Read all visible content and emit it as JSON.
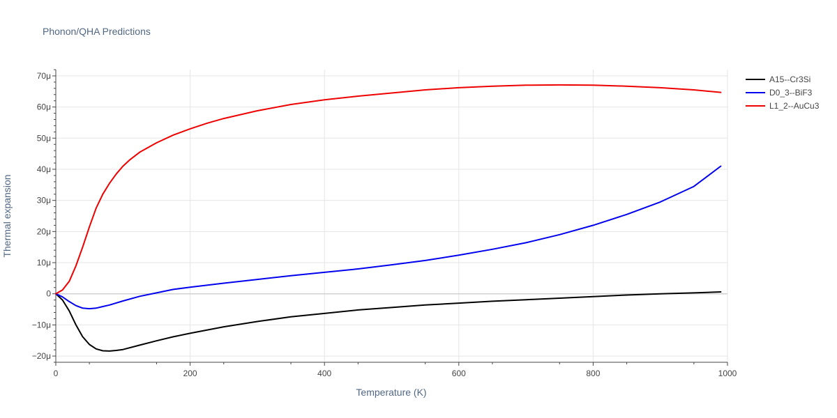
{
  "chart_data": {
    "type": "line",
    "title": "Phonon/QHA Predictions",
    "xlabel": "Temperature (K)",
    "ylabel": "Thermal expansion",
    "xlim": [
      0,
      1000
    ],
    "ylim": [
      -22,
      72
    ],
    "x_ticks": [
      0,
      200,
      400,
      600,
      800,
      1000
    ],
    "x_tick_labels": [
      "0",
      "200",
      "400",
      "600",
      "800",
      "1000"
    ],
    "y_ticks": [
      -20,
      -10,
      0,
      10,
      20,
      30,
      40,
      50,
      60,
      70
    ],
    "y_tick_labels": [
      "−20μ",
      "−10μ",
      "0",
      "10μ",
      "20μ",
      "30μ",
      "40μ",
      "50μ",
      "60μ",
      "70μ"
    ],
    "grid": true,
    "legend_position": "top-right",
    "series": [
      {
        "name": "A15--Cr3Si",
        "color": "#000000",
        "x": [
          0,
          10,
          20,
          30,
          40,
          50,
          60,
          70,
          80,
          90,
          100,
          125,
          150,
          175,
          200,
          250,
          300,
          350,
          400,
          450,
          500,
          550,
          600,
          650,
          700,
          750,
          800,
          850,
          900,
          950,
          990
        ],
        "y": [
          0,
          -2,
          -5.5,
          -10,
          -13.8,
          -16.3,
          -17.7,
          -18.3,
          -18.4,
          -18.2,
          -17.9,
          -16.5,
          -15.1,
          -13.8,
          -12.7,
          -10.6,
          -8.9,
          -7.4,
          -6.3,
          -5.2,
          -4.4,
          -3.6,
          -3.0,
          -2.4,
          -1.9,
          -1.4,
          -0.9,
          -0.4,
          0,
          0.3,
          0.6
        ]
      },
      {
        "name": "D0_3--BiF3",
        "color": "#0000ee",
        "x": [
          0,
          10,
          20,
          30,
          40,
          50,
          60,
          70,
          80,
          100,
          125,
          150,
          175,
          200,
          250,
          300,
          350,
          400,
          450,
          500,
          550,
          600,
          650,
          700,
          750,
          800,
          850,
          900,
          950,
          990
        ],
        "y": [
          0,
          -1,
          -2.5,
          -3.8,
          -4.6,
          -4.8,
          -4.6,
          -4.1,
          -3.6,
          -2.3,
          -0.8,
          0.3,
          1.4,
          2.1,
          3.4,
          4.6,
          5.8,
          6.9,
          8.0,
          9.3,
          10.7,
          12.4,
          14.3,
          16.4,
          19.0,
          22.0,
          25.5,
          29.5,
          34.5,
          41.0
        ]
      },
      {
        "name": "L1_2--AuCu3",
        "color": "#ee0000",
        "x": [
          0,
          10,
          20,
          30,
          40,
          50,
          60,
          70,
          80,
          90,
          100,
          110,
          125,
          150,
          175,
          200,
          225,
          250,
          300,
          350,
          400,
          450,
          500,
          550,
          600,
          650,
          700,
          750,
          800,
          850,
          900,
          950,
          990
        ],
        "y": [
          0,
          1.2,
          4,
          9,
          15,
          21.5,
          27.5,
          32,
          35.5,
          38.5,
          41,
          43,
          45.5,
          48.5,
          51,
          53,
          54.8,
          56.3,
          58.8,
          60.8,
          62.3,
          63.5,
          64.5,
          65.5,
          66.2,
          66.7,
          67.0,
          67.1,
          67.0,
          66.7,
          66.2,
          65.5,
          64.7
        ]
      }
    ]
  }
}
